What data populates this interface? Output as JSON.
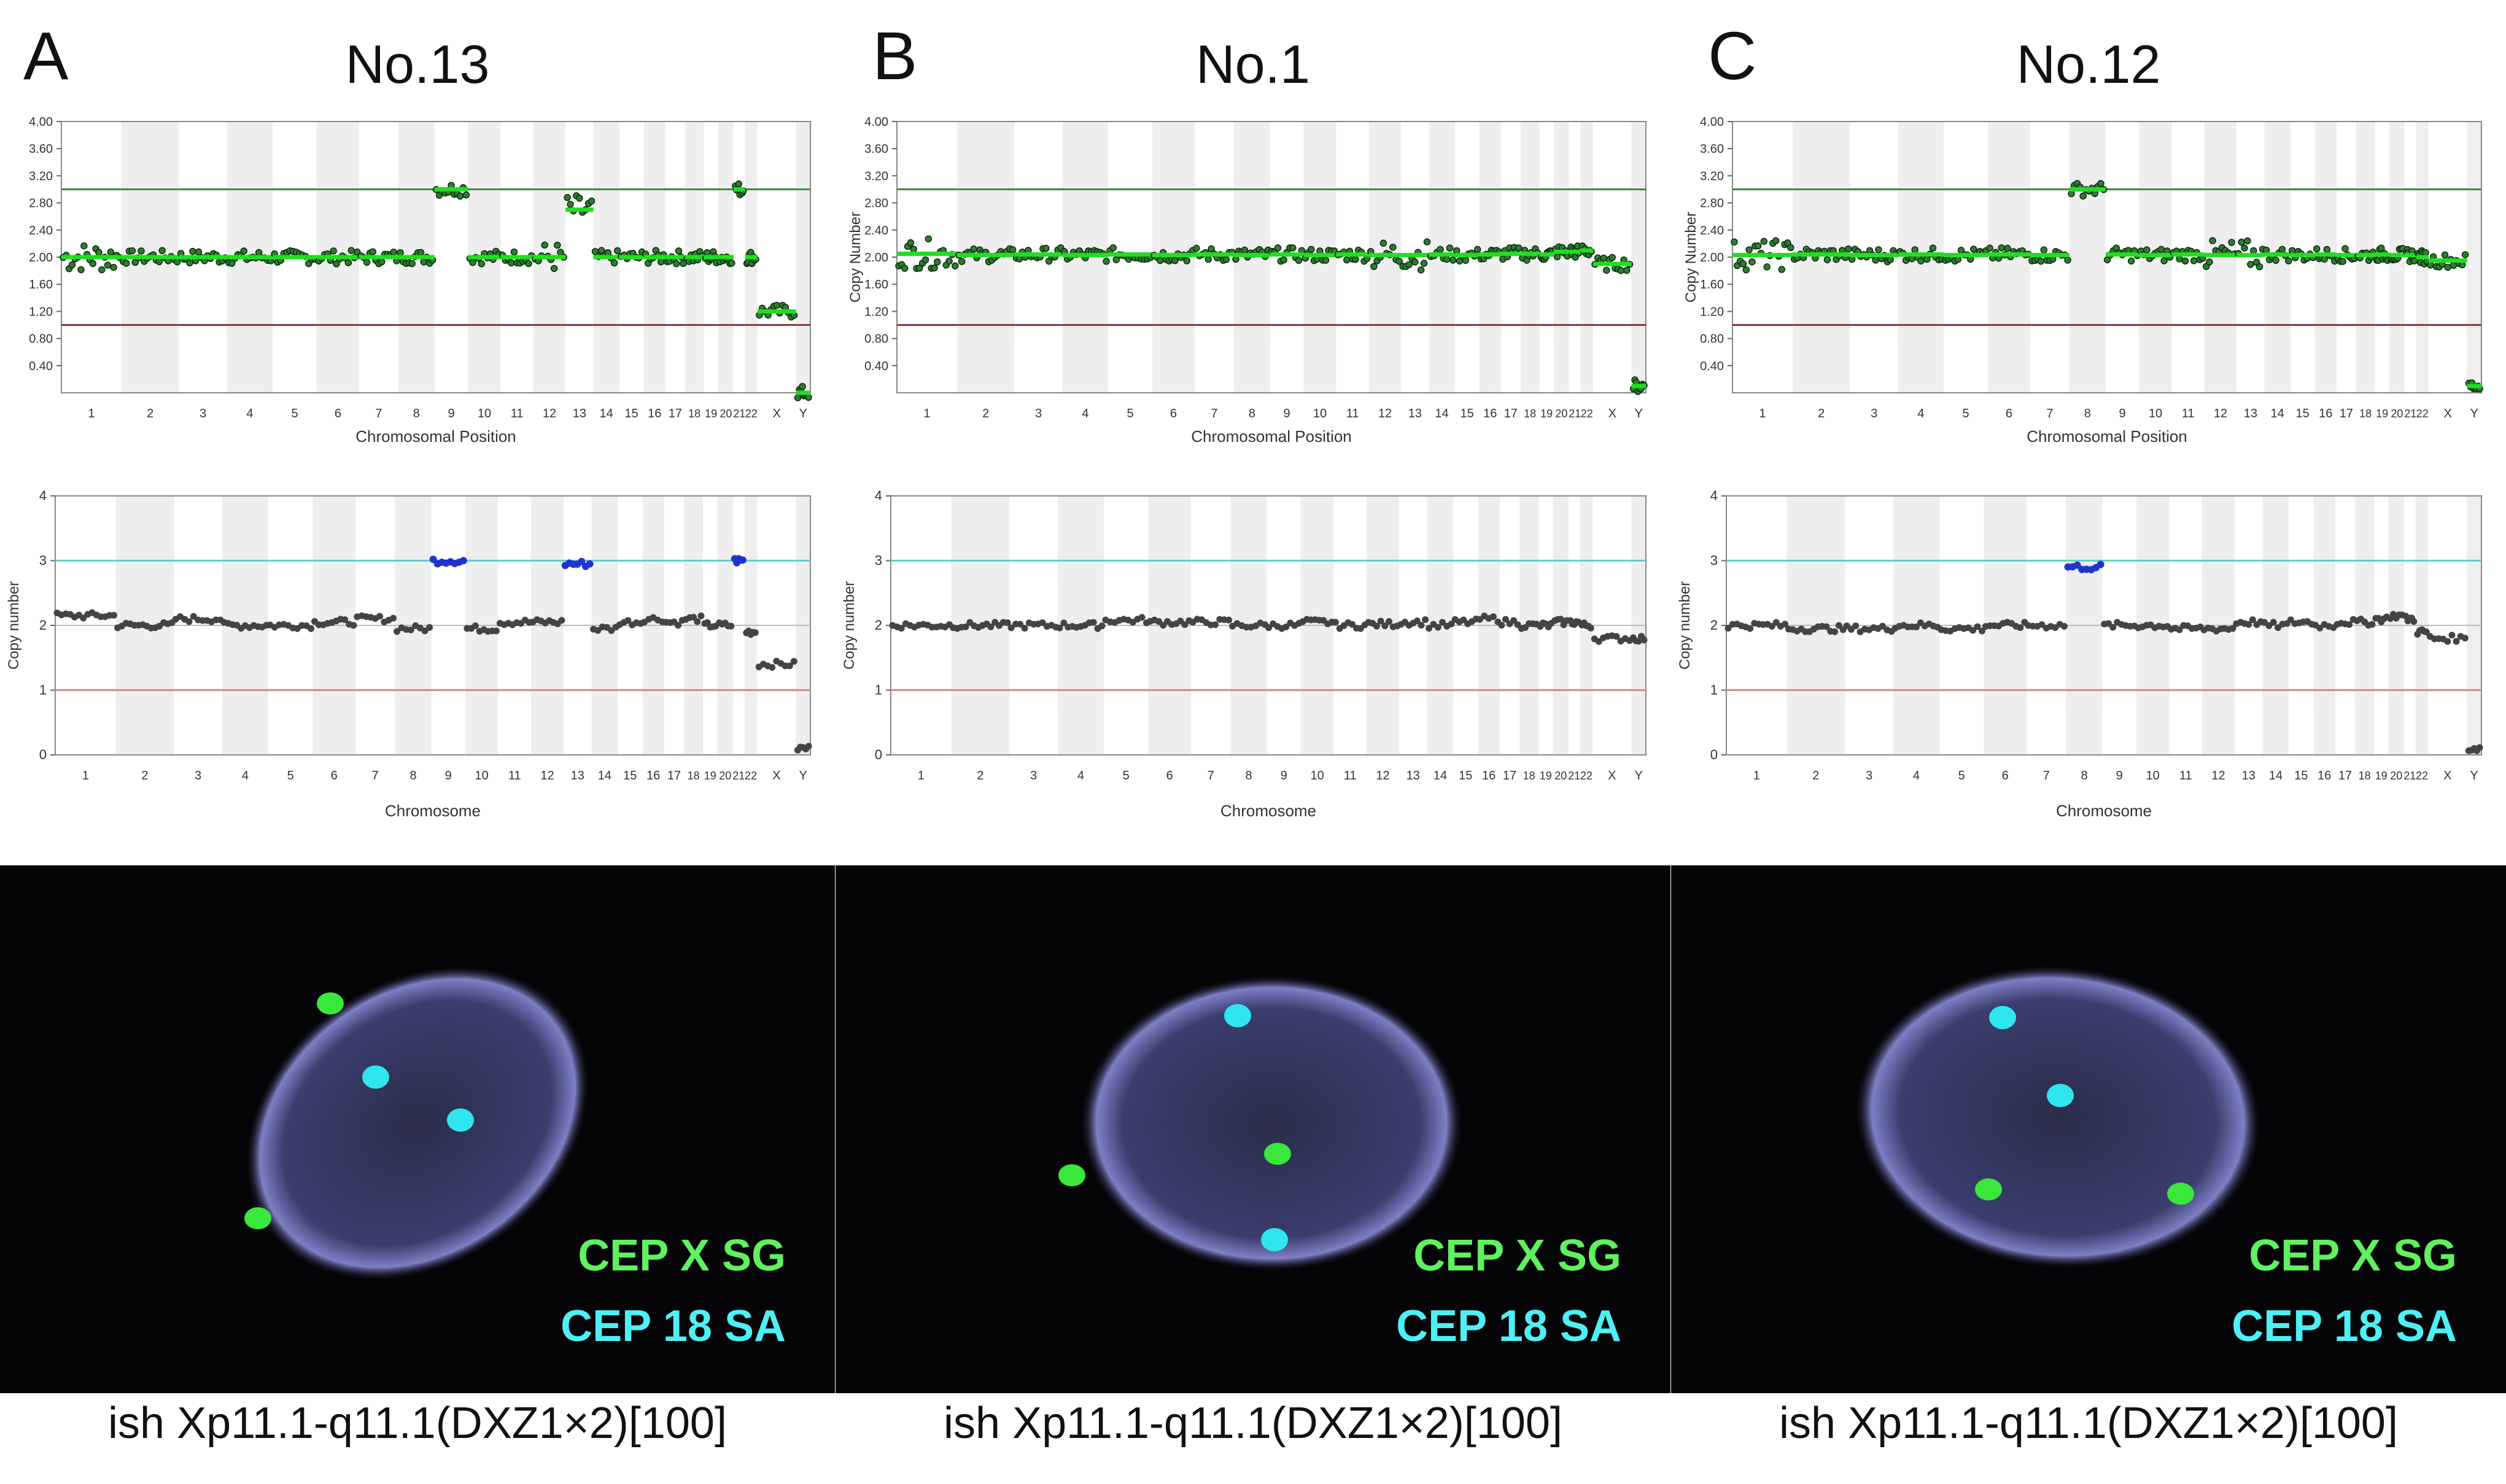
{
  "figure": {
    "panels": [
      {
        "letter": "A",
        "sample": "No.13",
        "caption": "ish Xp11.1-q11.1(DXZ1×2)[100]",
        "fish_legend": {
          "probe_x": "CEP X SG",
          "probe_18": "CEP 18 SA"
        },
        "fish_signals": {
          "green": 2,
          "cyan": 2
        }
      },
      {
        "letter": "B",
        "sample": "No.1",
        "caption": "ish Xp11.1-q11.1(DXZ1×2)[100]",
        "fish_legend": {
          "probe_x": "CEP X SG",
          "probe_18": "CEP 18 SA"
        },
        "fish_signals": {
          "green": 2,
          "cyan": 2
        }
      },
      {
        "letter": "C",
        "sample": "No.12",
        "caption": "ish Xp11.1-q11.1(DXZ1×2)[100]",
        "fish_legend": {
          "probe_x": "CEP X SG",
          "probe_18": "CEP 18 SA"
        },
        "fish_signals": {
          "green": 2,
          "cyan": 2
        }
      }
    ],
    "colors": {
      "gain_line": "#3a8a3a",
      "loss_line": "#8b3a3a",
      "cn_segment": "#22dd22",
      "seq_gain_points": "#2233cc",
      "seq_points": "#444444",
      "seq_ref3": "#66cccc",
      "seq_ref1": "#d88888"
    }
  },
  "chart_data": [
    {
      "id": "A-array",
      "type": "scatter",
      "xlabel": "Chromosomal Position",
      "ylabel": "",
      "ylim": [
        0,
        4
      ],
      "ytick_labels": [
        "0.40",
        "0.80",
        "1.20",
        "1.60",
        "2.00",
        "2.40",
        "2.80",
        "3.20",
        "3.60",
        "4.00"
      ],
      "reference_lines": {
        "gain": 3.0,
        "loss": 1.0
      },
      "categories": [
        "1",
        "2",
        "3",
        "4",
        "5",
        "6",
        "7",
        "8",
        "9",
        "10",
        "11",
        "12",
        "13",
        "14",
        "15",
        "16",
        "17",
        "18",
        "19",
        "20",
        "21",
        "22",
        "X",
        "Y"
      ],
      "values": [
        2.0,
        2.0,
        2.0,
        2.0,
        2.0,
        2.0,
        2.0,
        2.0,
        3.0,
        2.0,
        2.0,
        2.0,
        2.7,
        2.0,
        2.0,
        2.0,
        2.0,
        2.0,
        2.0,
        2.0,
        3.0,
        2.0,
        1.2,
        0.0
      ]
    },
    {
      "id": "A-seq",
      "type": "scatter",
      "xlabel": "Chromosome",
      "ylabel": "Copy number",
      "ylim": [
        0,
        4
      ],
      "ytick_labels": [
        "0",
        "1",
        "2",
        "3",
        "4"
      ],
      "reference_lines": {
        "gain": 3.0,
        "loss": 1.0
      },
      "categories": [
        "1",
        "2",
        "3",
        "4",
        "5",
        "6",
        "7",
        "8",
        "9",
        "10",
        "11",
        "12",
        "13",
        "14",
        "15",
        "16",
        "17",
        "18",
        "19",
        "20",
        "21",
        "22",
        "X",
        "Y"
      ],
      "values": [
        2.15,
        2.0,
        2.1,
        2.0,
        2.0,
        2.05,
        2.1,
        1.95,
        3.0,
        1.95,
        2.05,
        2.05,
        2.95,
        1.95,
        2.05,
        2.1,
        2.05,
        2.1,
        2.0,
        2.0,
        3.0,
        1.9,
        1.4,
        0.1
      ]
    },
    {
      "id": "B-array",
      "type": "scatter",
      "xlabel": "Chromosomal Position",
      "ylabel": "Copy Number",
      "ylim": [
        0,
        4
      ],
      "ytick_labels": [
        "0.40",
        "0.80",
        "1.20",
        "1.60",
        "2.00",
        "2.40",
        "2.80",
        "3.20",
        "3.60",
        "4.00"
      ],
      "reference_lines": {
        "gain": 3.0,
        "loss": 1.0
      },
      "categories": [
        "1",
        "2",
        "3",
        "4",
        "5",
        "6",
        "7",
        "8",
        "9",
        "10",
        "11",
        "12",
        "13",
        "14",
        "15",
        "16",
        "17",
        "18",
        "19",
        "20",
        "21",
        "22",
        "X",
        "Y"
      ],
      "values": [
        2.05,
        2.03,
        2.04,
        2.03,
        2.04,
        2.03,
        2.04,
        2.03,
        2.04,
        2.03,
        2.04,
        2.03,
        2.03,
        2.04,
        2.03,
        2.04,
        2.05,
        2.05,
        2.04,
        2.08,
        2.08,
        2.1,
        1.9,
        0.1
      ]
    },
    {
      "id": "B-seq",
      "type": "scatter",
      "xlabel": "Chromosome",
      "ylabel": "Copy number",
      "ylim": [
        0,
        4
      ],
      "ytick_labels": [
        "0",
        "1",
        "2",
        "3",
        "4"
      ],
      "reference_lines": {
        "gain": 3.0,
        "loss": 1.0
      },
      "categories": [
        "1",
        "2",
        "3",
        "4",
        "5",
        "6",
        "7",
        "8",
        "9",
        "10",
        "11",
        "12",
        "13",
        "14",
        "15",
        "16",
        "17",
        "18",
        "19",
        "20",
        "21",
        "22",
        "X",
        "Y"
      ],
      "values": [
        2.0,
        2.0,
        2.0,
        2.0,
        2.08,
        2.05,
        2.05,
        2.0,
        2.0,
        2.05,
        2.0,
        2.02,
        2.05,
        2.0,
        2.05,
        2.1,
        2.05,
        2.0,
        2.0,
        2.05,
        2.05,
        2.0,
        1.8,
        1.8
      ]
    },
    {
      "id": "C-array",
      "type": "scatter",
      "xlabel": "Chromosomal Position",
      "ylabel": "Copy Number",
      "ylim": [
        0,
        4
      ],
      "ytick_labels": [
        "0.40",
        "0.80",
        "1.20",
        "1.60",
        "2.00",
        "2.40",
        "2.80",
        "3.20",
        "3.60",
        "4.00"
      ],
      "reference_lines": {
        "gain": 3.0,
        "loss": 1.0
      },
      "categories": [
        "1",
        "2",
        "3",
        "4",
        "5",
        "6",
        "7",
        "8",
        "9",
        "10",
        "11",
        "12",
        "13",
        "14",
        "15",
        "16",
        "17",
        "18",
        "19",
        "20",
        "21",
        "22",
        "X",
        "Y"
      ],
      "values": [
        2.03,
        2.04,
        2.03,
        2.04,
        2.03,
        2.04,
        2.03,
        3.0,
        2.04,
        2.03,
        2.04,
        2.03,
        2.03,
        2.04,
        2.03,
        2.04,
        2.03,
        2.03,
        2.04,
        2.03,
        2.03,
        2.0,
        1.95,
        0.1
      ]
    },
    {
      "id": "C-seq",
      "type": "scatter",
      "xlabel": "Chromosome",
      "ylabel": "Copy number",
      "ylim": [
        0,
        4
      ],
      "ytick_labels": [
        "0",
        "1",
        "2",
        "3",
        "4"
      ],
      "reference_lines": {
        "gain": 3.0,
        "loss": 1.0
      },
      "categories": [
        "1",
        "2",
        "3",
        "4",
        "5",
        "6",
        "7",
        "8",
        "9",
        "10",
        "11",
        "12",
        "13",
        "14",
        "15",
        "16",
        "17",
        "18",
        "19",
        "20",
        "21",
        "22",
        "X",
        "Y"
      ],
      "values": [
        2.0,
        1.95,
        1.95,
        2.0,
        1.95,
        2.0,
        2.0,
        2.9,
        2.0,
        2.0,
        1.95,
        1.95,
        2.05,
        2.0,
        2.05,
        2.0,
        2.05,
        2.05,
        2.1,
        2.15,
        2.1,
        1.9,
        1.8,
        0.1
      ]
    }
  ]
}
